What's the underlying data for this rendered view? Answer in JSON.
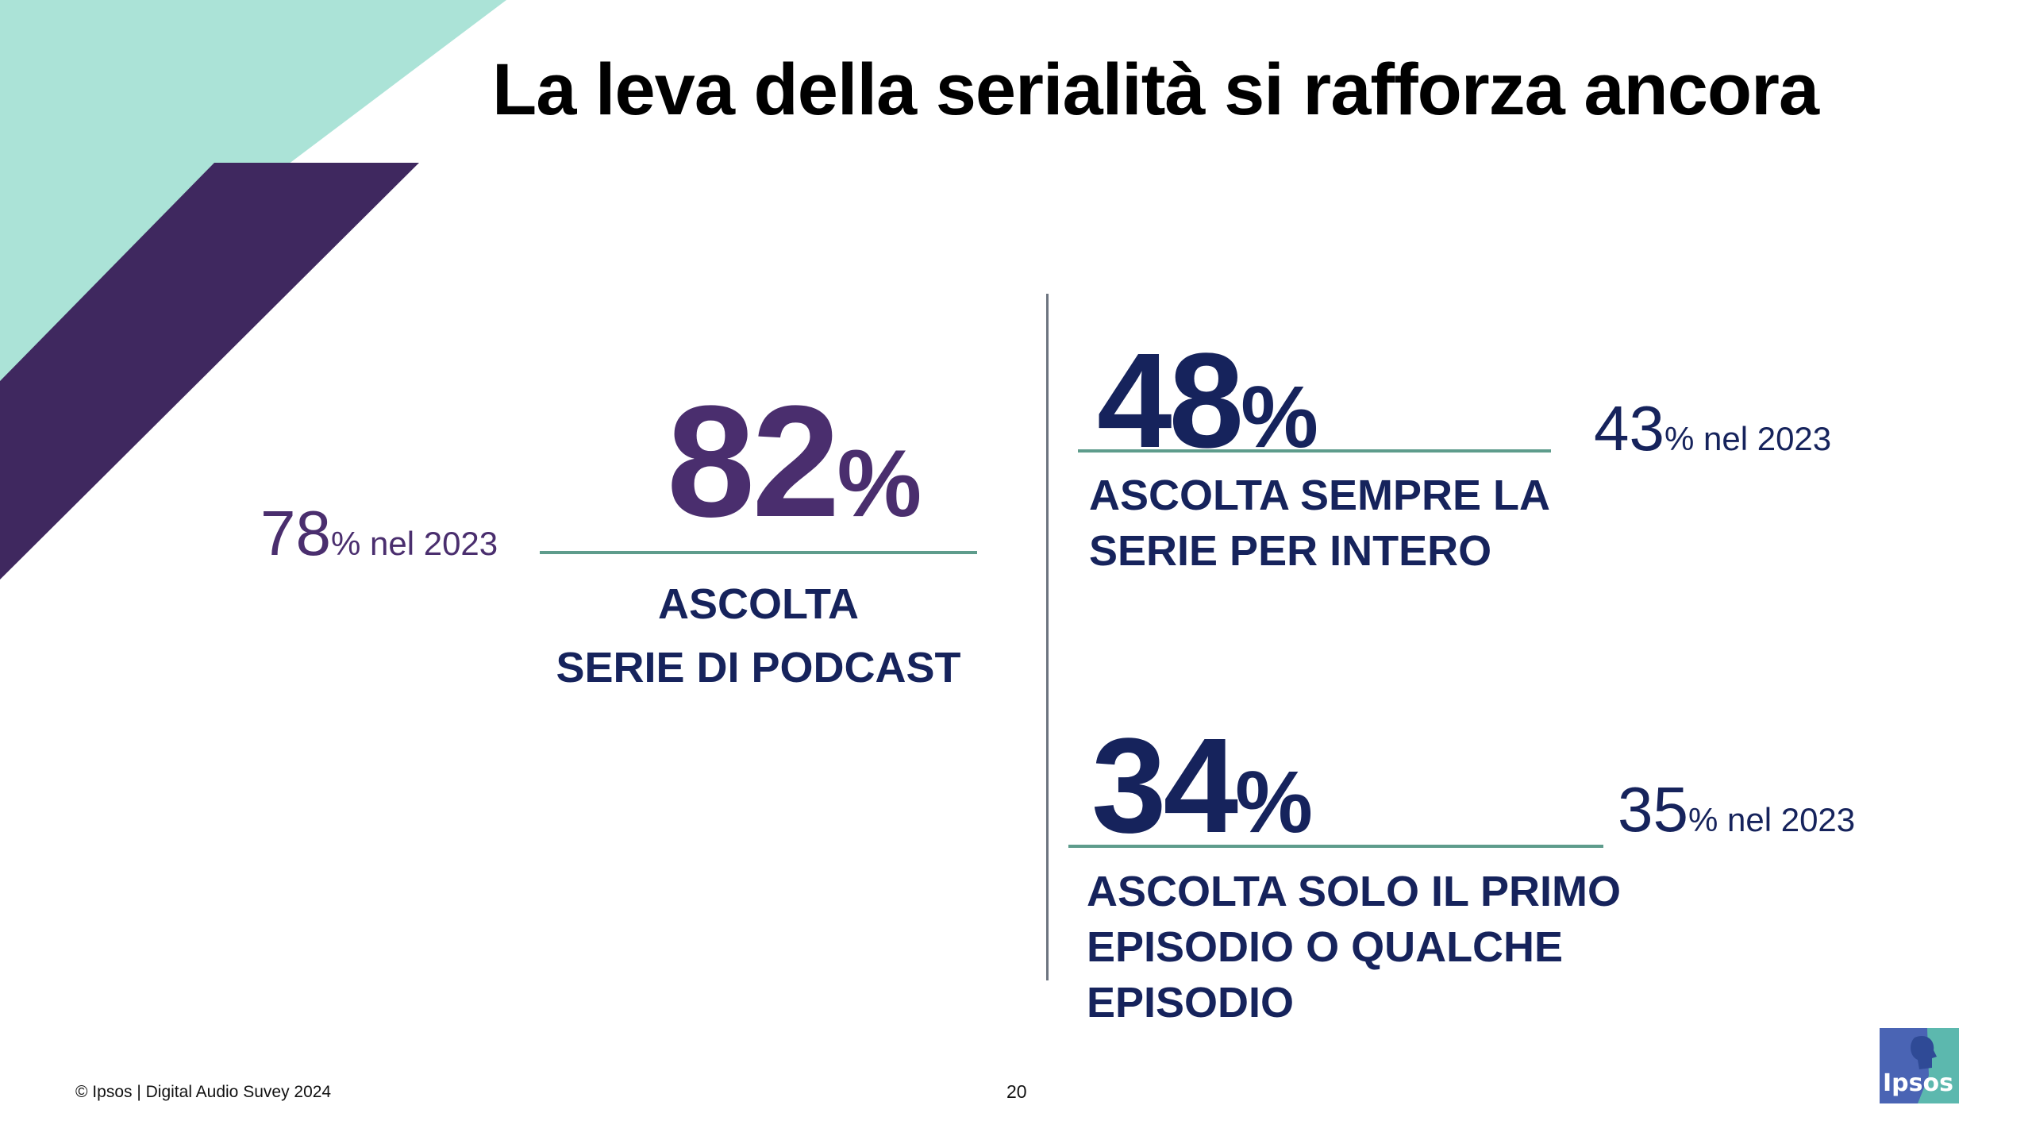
{
  "colors": {
    "mint": "#abe3d7",
    "purple": "#3f285f",
    "navy": "#16235c",
    "stat_purple": "#4a2e6e",
    "rule_green": "#5e9c8c",
    "logo_blue": "#4a64b4",
    "logo_teal": "#5cb8ae"
  },
  "slide": {
    "title": "La leva della serialità si rafforza ancora"
  },
  "stats": {
    "series": {
      "value": "82",
      "percent": "%",
      "label_line1": "ASCOLTA",
      "label_line2": "SERIE DI PODCAST",
      "prev_value": "78",
      "prev_text": "% nel 2023"
    },
    "full": {
      "value": "48",
      "percent": "%",
      "label_line1": "ASCOLTA  SEMPRE LA",
      "label_line2": "SERIE PER INTERO",
      "prev_value": "43",
      "prev_text": "% nel 2023"
    },
    "first": {
      "value": "34",
      "percent": "%",
      "label_line1": "ASCOLTA SOLO IL PRIMO",
      "label_line2": "EPISODIO O QUALCHE",
      "label_line3": "EPISODIO",
      "prev_value": "35",
      "prev_text": "% nel 2023"
    }
  },
  "footer": {
    "copyright": "© Ipsos | Digital Audio Suvey 2024",
    "page_number": "20"
  },
  "logo": {
    "text": "Ipsos",
    "icon": "ipsos-head-icon"
  }
}
